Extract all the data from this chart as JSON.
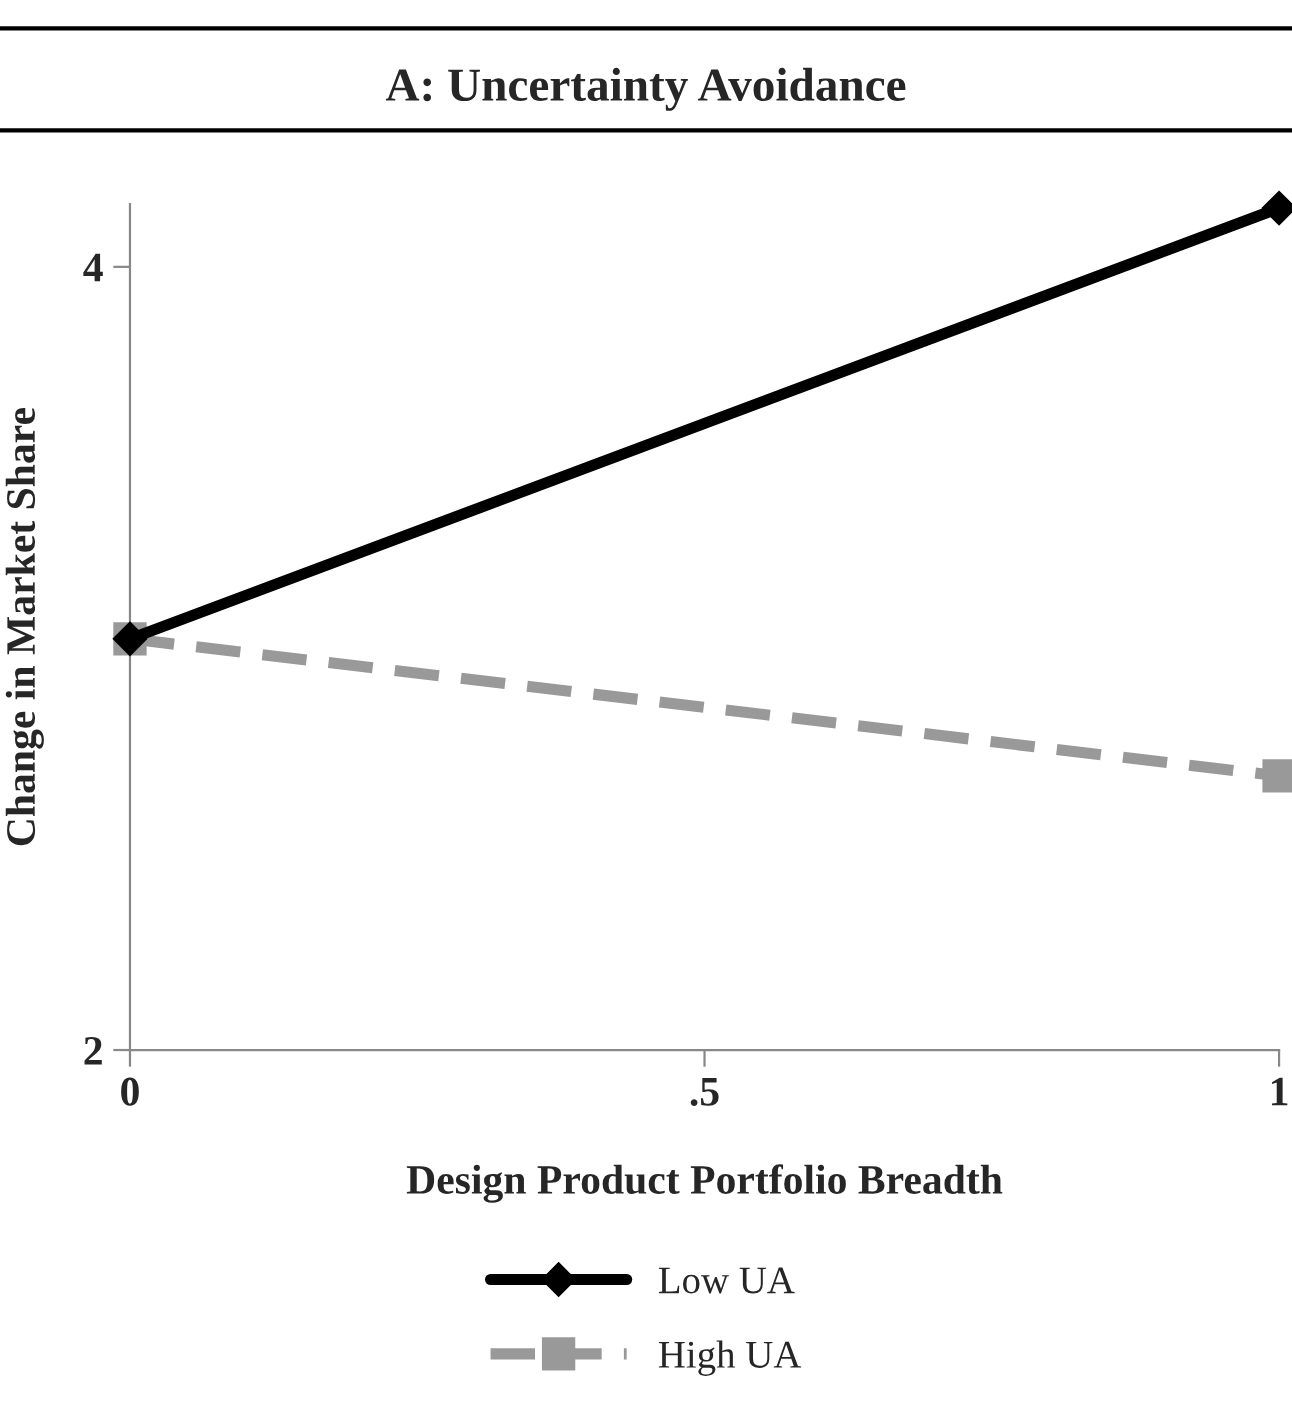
{
  "chart_data": {
    "type": "line",
    "title": "A: Uncertainty Avoidance",
    "xlabel": "Design Product Portfolio Breadth",
    "ylabel": "Change in Market Share",
    "x": [
      0,
      1
    ],
    "series": [
      {
        "name": "Low UA",
        "color": "#000000",
        "values": [
          3.05,
          4.15
        ],
        "marker": "diamond",
        "line_style": "solid"
      },
      {
        "name": "High UA",
        "color": "#999999",
        "values": [
          3.05,
          2.7
        ],
        "marker": "square",
        "line_style": "dashed"
      }
    ],
    "xlim": [
      0,
      1
    ],
    "xticks": [
      0,
      {
        "value": 0.5,
        "label": ".5"
      },
      1
    ],
    "ylim": [
      2,
      4.16
    ],
    "yticks": [
      2,
      4
    ],
    "grid": false,
    "legend": "bottom"
  }
}
